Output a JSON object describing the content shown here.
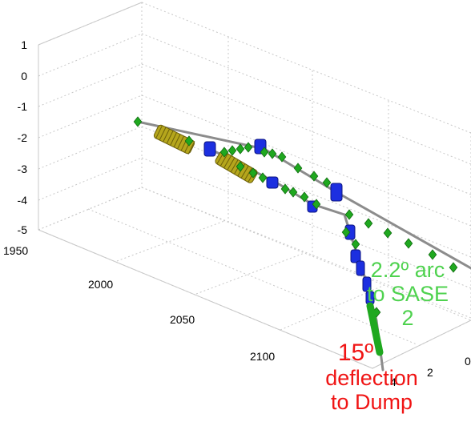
{
  "colors": {
    "background": "#ffffff",
    "grid": "#c8c8c8",
    "beamline": "#8c8c8c",
    "marker": "#1fa81f",
    "dipole": "#1c2fe0",
    "undulator": "#b5a61c",
    "arc_label": "#4fd24f",
    "dump_label": "#f01414"
  },
  "axes": {
    "z_ticks": [
      "1",
      "0",
      "-1",
      "-2",
      "-3",
      "-4",
      "-5"
    ],
    "x_ticks": [
      "1950",
      "2000",
      "2050",
      "2100"
    ],
    "y_ticks": [
      "0",
      "2",
      "4"
    ]
  },
  "annotations": {
    "arc": {
      "line1": "2.2º arc",
      "line2": "to SASE",
      "line3": "2",
      "color": "#4fd24f"
    },
    "dump": {
      "line1": "15º",
      "line2": "deflection",
      "line3": "to Dump",
      "color": "#f01414"
    }
  },
  "icons": {
    "marker": "green-diamond-marker",
    "dipole": "blue-dipole-block",
    "undulator": "yellow-undulator-cylinder"
  }
}
